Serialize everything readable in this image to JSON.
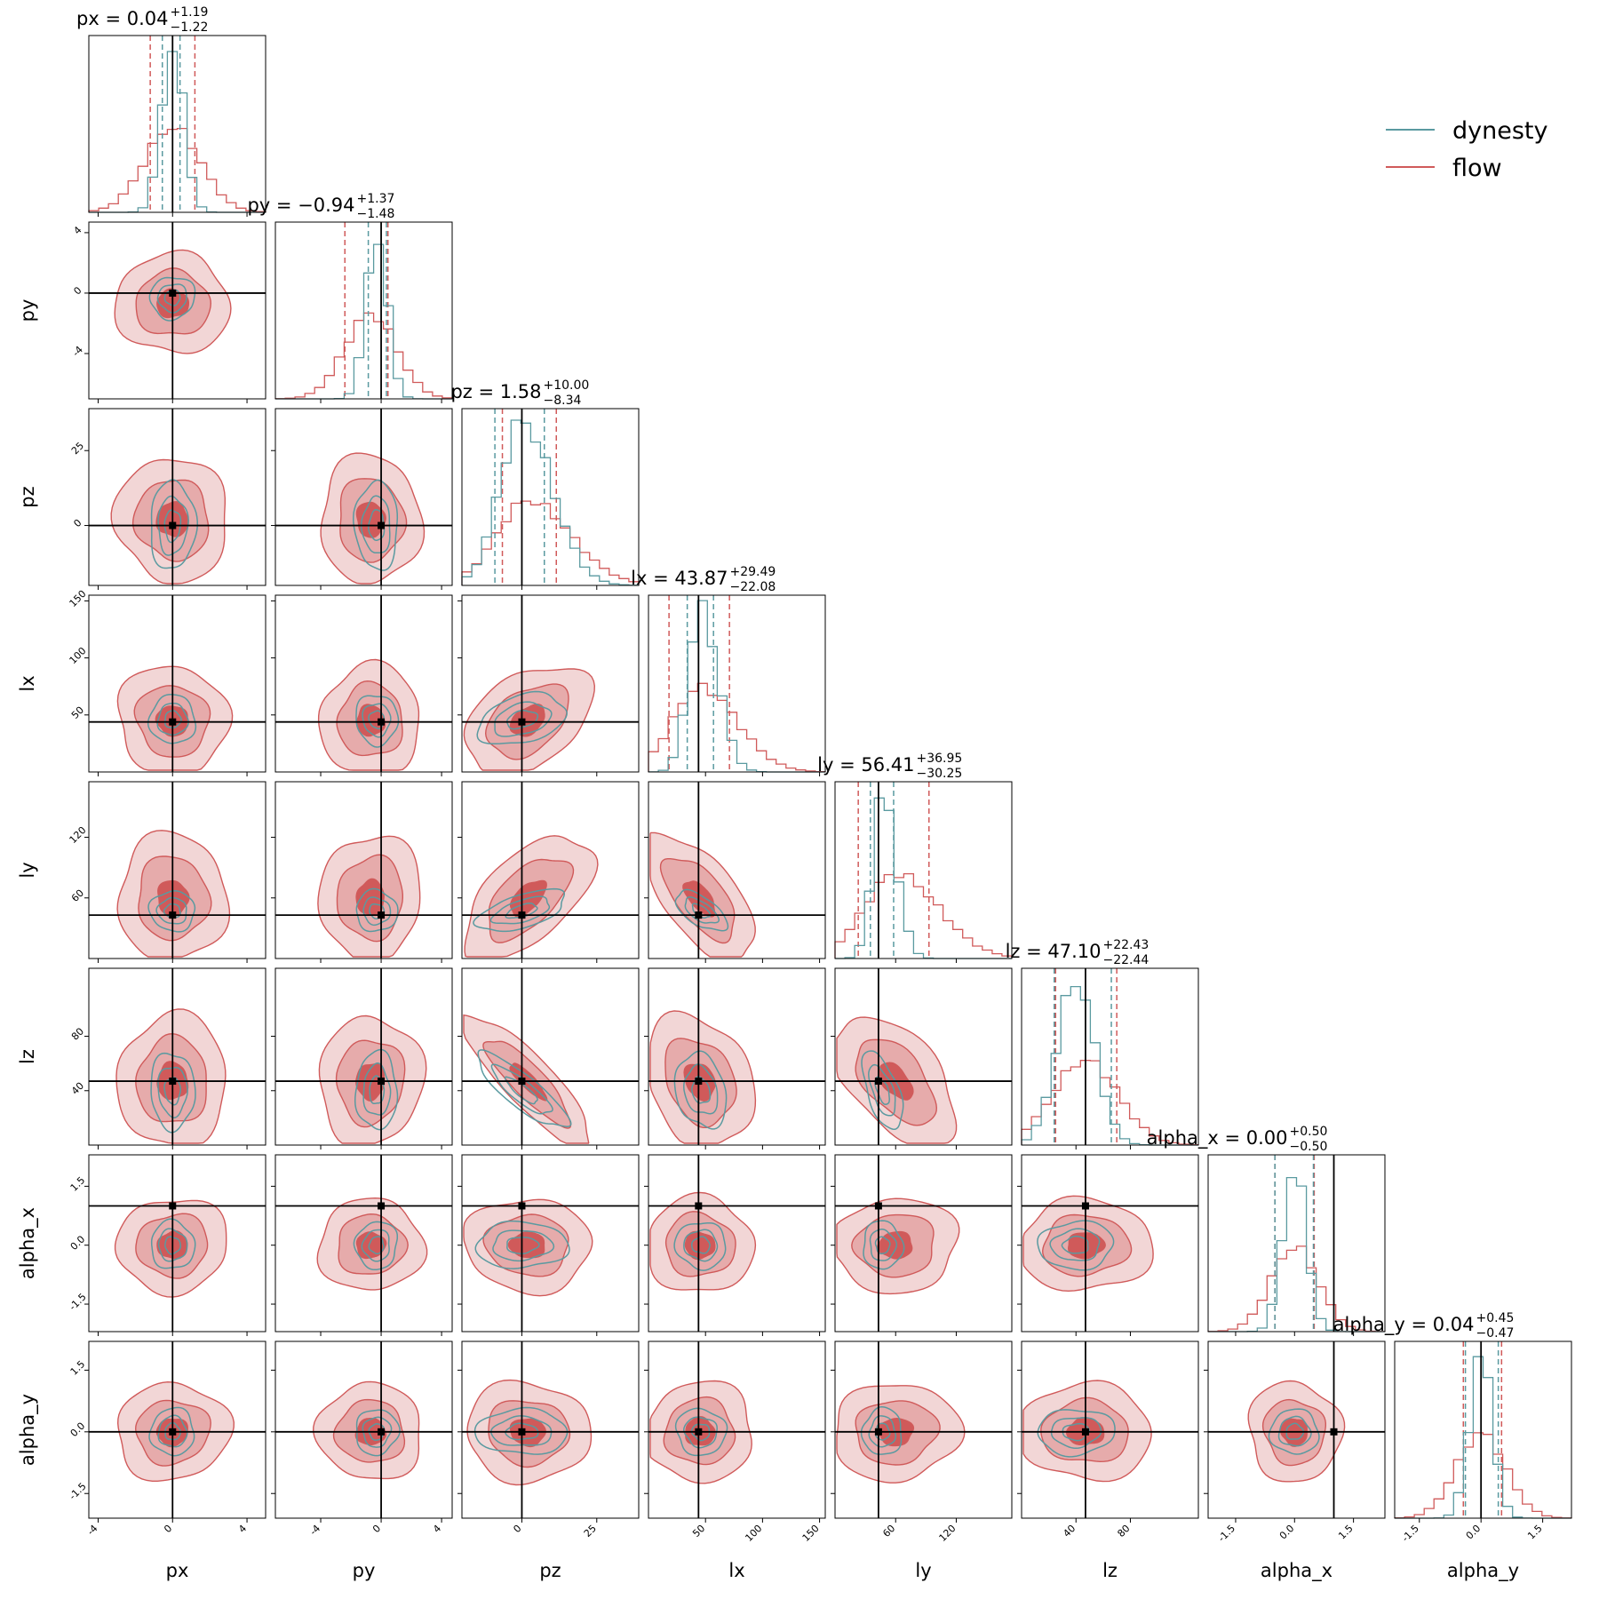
{
  "chart_data": {
    "type": "corner",
    "legend": {
      "placement": "top-right",
      "entries": [
        {
          "label": "dynesty",
          "color": "#5a9aa0"
        },
        {
          "label": "flow",
          "color": "#d05a5a"
        }
      ]
    },
    "colors": {
      "dynesty": "#5a9aa0",
      "flow": "#d05a5a",
      "truth": "#000000"
    },
    "parameters": [
      {
        "name": "px",
        "range": [
          -4.5,
          5.0
        ],
        "truth": 0.0,
        "ticks": [
          "-4",
          "0",
          "4"
        ],
        "tickvals": [
          -4,
          0,
          4
        ],
        "title": {
          "prefix": "px = ",
          "value": "0.04",
          "plus": "+1.19",
          "minus": "−1.22"
        },
        "quantiles": {
          "flow": [
            -1.2,
            1.2
          ],
          "dynesty": [
            -0.55,
            0.4
          ]
        }
      },
      {
        "name": "py",
        "range": [
          -7.0,
          4.7
        ],
        "truth": 0.0,
        "ticks": [
          "-4",
          "0",
          "4"
        ],
        "tickvals": [
          -4,
          0,
          4
        ],
        "title": {
          "prefix": "py = ",
          "value": "−0.94",
          "plus": "+1.37",
          "minus": "−1.48"
        },
        "quantiles": {
          "flow": [
            -2.4,
            0.45
          ],
          "dynesty": [
            -0.85,
            0.35
          ]
        }
      },
      {
        "name": "pz",
        "range": [
          -20.0,
          39.0
        ],
        "truth": 0.0,
        "ticks": [
          "0",
          "25"
        ],
        "tickvals": [
          0,
          25
        ],
        "title": {
          "prefix": "pz = ",
          "value": "1.58",
          "plus": "+10.00",
          "minus": "−8.34"
        },
        "quantiles": {
          "flow": [
            -6.5,
            11.5
          ],
          "dynesty": [
            -9.0,
            7.5
          ]
        }
      },
      {
        "name": "lx",
        "range": [
          0,
          155
        ],
        "truth": 43.87,
        "ticks": [
          "50",
          "100",
          "150"
        ],
        "tickvals": [
          50,
          100,
          150
        ],
        "title": {
          "prefix": "lx = ",
          "value": "43.87",
          "plus": "+29.49",
          "minus": "−22.08"
        },
        "quantiles": {
          "flow": [
            18,
            71
          ],
          "dynesty": [
            34,
            57
          ]
        }
      },
      {
        "name": "ly",
        "range": [
          0,
          175
        ],
        "truth": 43.0,
        "ticks": [
          "60",
          "120"
        ],
        "tickvals": [
          60,
          120
        ],
        "title": {
          "prefix": "ly = ",
          "value": "56.41",
          "plus": "+36.95",
          "minus": "−30.25"
        },
        "quantiles": {
          "flow": [
            23,
            93
          ],
          "dynesty": [
            35,
            58
          ]
        }
      },
      {
        "name": "lz",
        "range": [
          0,
          130
        ],
        "truth": 47.0,
        "ticks": [
          "40",
          "80"
        ],
        "tickvals": [
          40,
          80
        ],
        "title": {
          "prefix": "lz = ",
          "value": "47.10",
          "plus": "+22.43",
          "minus": "−22.44"
        },
        "quantiles": {
          "flow": [
            25,
            70
          ],
          "dynesty": [
            24,
            66
          ]
        }
      },
      {
        "name": "alpha_x",
        "range": [
          -2.2,
          2.3
        ],
        "truth": 1.0,
        "ticks": [
          "-1.5",
          "0.0",
          "1.5"
        ],
        "tickvals": [
          -1.5,
          0.0,
          1.5
        ],
        "title": {
          "prefix": "alpha_x = ",
          "value": "0.00",
          "plus": "+0.50",
          "minus": "−0.50"
        },
        "quantiles": {
          "flow": [
            -0.5,
            0.5
          ],
          "dynesty": [
            -0.5,
            0.48
          ]
        }
      },
      {
        "name": "alpha_y",
        "range": [
          -2.1,
          2.2
        ],
        "truth": 0.0,
        "ticks": [
          "-1.5",
          "0.0",
          "1.5"
        ],
        "tickvals": [
          -1.5,
          0.0,
          1.5
        ],
        "title": {
          "prefix": "alpha_y = ",
          "value": "0.04",
          "plus": "+0.45",
          "minus": "−0.47"
        },
        "quantiles": {
          "flow": [
            -0.43,
            0.5
          ],
          "dynesty": [
            -0.38,
            0.42
          ]
        }
      }
    ],
    "flow_sigma": [
      1.5,
      1.7,
      10.5,
      24,
      31,
      24,
      0.6,
      0.6
    ],
    "dynesty_sigma": [
      0.6,
      0.7,
      7.5,
      11,
      10,
      14,
      0.3,
      0.28
    ],
    "flow_mean": [
      0.0,
      -0.7,
      2.0,
      45,
      60,
      47,
      0.0,
      0.0
    ],
    "dynesty_mean": [
      0.0,
      -0.3,
      0.0,
      46,
      47,
      40,
      0.0,
      0.0
    ],
    "correlations": {
      "2,3": 0.35,
      "2,4": 0.55,
      "3,4": -0.6,
      "2,5": -0.85,
      "3,5": -0.2,
      "4,5": -0.55
    }
  }
}
